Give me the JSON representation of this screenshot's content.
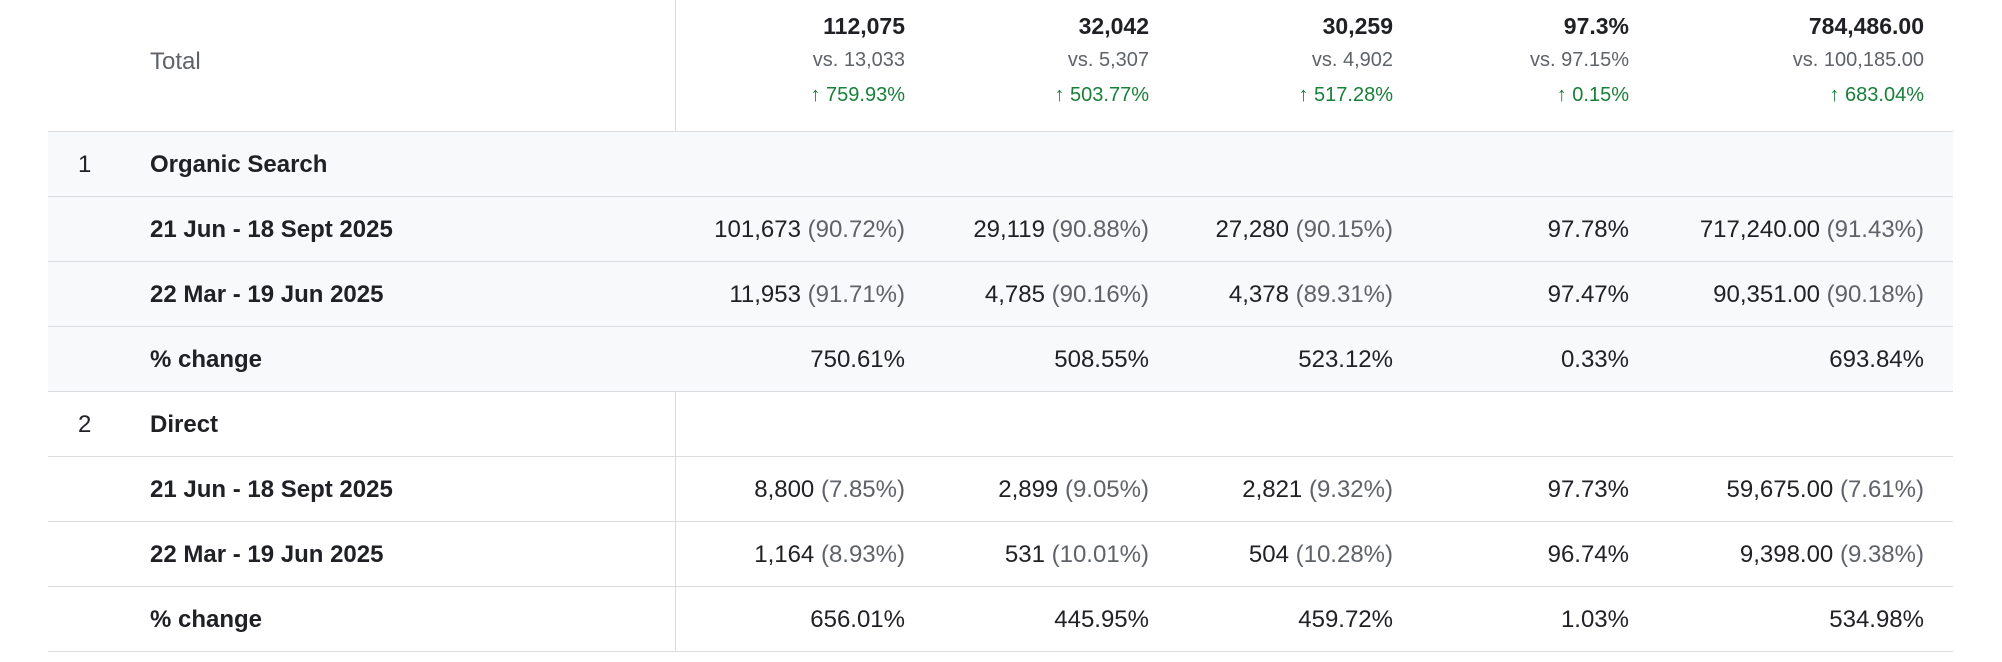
{
  "total": {
    "label": "Total",
    "metrics": [
      {
        "value": "112,075",
        "vs": "vs. 13,033",
        "change": "759.93%"
      },
      {
        "value": "32,042",
        "vs": "vs. 5,307",
        "change": "503.77%"
      },
      {
        "value": "30,259",
        "vs": "vs. 4,902",
        "change": "517.28%"
      },
      {
        "value": "97.3%",
        "vs": "vs. 97.15%",
        "change": "0.15%"
      },
      {
        "value": "784,486.00",
        "vs": "vs. 100,185.00",
        "change": "683.04%"
      }
    ],
    "change_icon": "arrow-up-icon",
    "change_color": "#188038"
  },
  "groups": [
    {
      "index": "1",
      "name": "Organic Search",
      "rows": [
        {
          "label": "21 Jun - 18 Sept 2025",
          "cells": [
            [
              "101,673",
              "(90.72%)"
            ],
            [
              "29,119",
              "(90.88%)"
            ],
            [
              "27,280",
              "(90.15%)"
            ],
            [
              "97.78%",
              ""
            ],
            [
              "717,240.00",
              "(91.43%)"
            ]
          ]
        },
        {
          "label": "22 Mar - 19 Jun 2025",
          "cells": [
            [
              "11,953",
              "(91.71%)"
            ],
            [
              "4,785",
              "(90.16%)"
            ],
            [
              "4,378",
              "(89.31%)"
            ],
            [
              "97.47%",
              ""
            ],
            [
              "90,351.00",
              "(90.18%)"
            ]
          ]
        },
        {
          "label": "% change",
          "cells": [
            [
              "750.61%",
              ""
            ],
            [
              "508.55%",
              ""
            ],
            [
              "523.12%",
              ""
            ],
            [
              "0.33%",
              ""
            ],
            [
              "693.84%",
              ""
            ]
          ]
        }
      ]
    },
    {
      "index": "2",
      "name": "Direct",
      "rows": [
        {
          "label": "21 Jun - 18 Sept 2025",
          "cells": [
            [
              "8,800",
              "(7.85%)"
            ],
            [
              "2,899",
              "(9.05%)"
            ],
            [
              "2,821",
              "(9.32%)"
            ],
            [
              "97.73%",
              ""
            ],
            [
              "59,675.00",
              "(7.61%)"
            ]
          ]
        },
        {
          "label": "22 Mar - 19 Jun 2025",
          "cells": [
            [
              "1,164",
              "(8.93%)"
            ],
            [
              "531",
              "(10.01%)"
            ],
            [
              "504",
              "(10.28%)"
            ],
            [
              "96.74%",
              ""
            ],
            [
              "9,398.00",
              "(9.38%)"
            ]
          ]
        },
        {
          "label": "% change",
          "cells": [
            [
              "656.01%",
              ""
            ],
            [
              "445.95%",
              ""
            ],
            [
              "459.72%",
              ""
            ],
            [
              "1.03%",
              ""
            ],
            [
              "534.98%",
              ""
            ]
          ]
        }
      ]
    }
  ]
}
